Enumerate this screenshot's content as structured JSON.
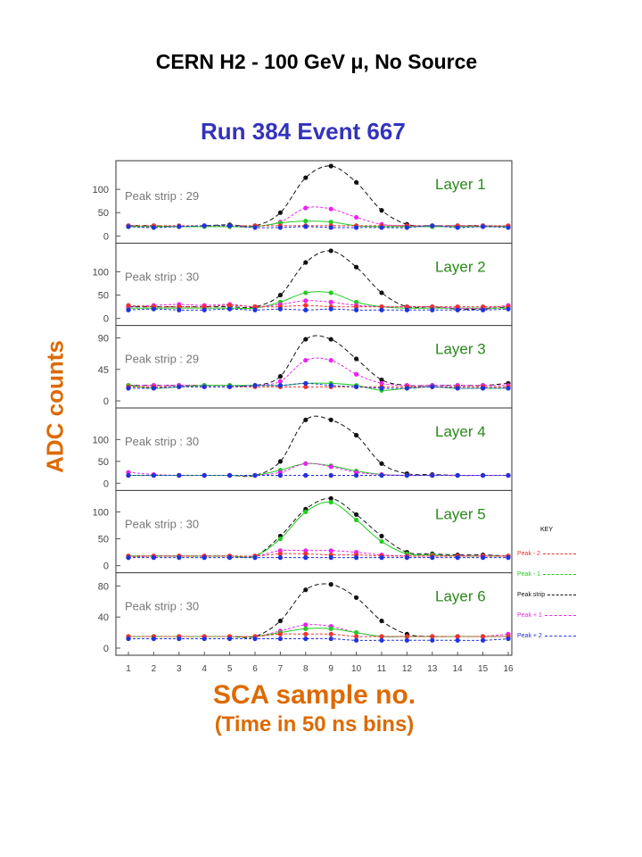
{
  "page": {
    "title": "CERN H2 - 100 GeV μ, No Source",
    "run_title": "Run 384   Event 667",
    "ylabel": "ADC counts",
    "xlabel_line1": "SCA sample no.",
    "xlabel_line2": "(Time in 50 ns bins)"
  },
  "key": {
    "title": "KEY",
    "items": [
      {
        "label": "Peak - 2",
        "color": "#ee3333"
      },
      {
        "label": "Peak - 1",
        "color": "#22cc22"
      },
      {
        "label": "Peak strip",
        "color": "#111111"
      },
      {
        "label": "Peak + 1",
        "color": "#ee22ee"
      },
      {
        "label": "Peak + 2",
        "color": "#2233dd"
      }
    ]
  },
  "colors": {
    "peak_strip": "#111111",
    "peak_minus_1": "#22cc22",
    "peak_minus_2": "#ee3333",
    "peak_plus_1": "#ee22ee",
    "peak_plus_2": "#2233dd",
    "layer_label": "#2a8a1a",
    "title_blue": "#3333bb",
    "axis_label_orange": "#dd6a00"
  },
  "chart_data": {
    "type": "line",
    "x": [
      1,
      2,
      3,
      4,
      5,
      6,
      7,
      8,
      9,
      10,
      11,
      12,
      13,
      14,
      15,
      16
    ],
    "xlabel": "SCA sample no. (Time in 50 ns bins)",
    "ylabel": "ADC counts",
    "panels": [
      {
        "label": "Layer 1",
        "peak_strip_text": "Peak strip : 29",
        "yticks": [
          0,
          50,
          100
        ],
        "ylim": [
          0,
          150
        ],
        "series": [
          {
            "name": "Peak strip",
            "color": "#111111",
            "values": [
              22,
              22,
              20,
              22,
              24,
              22,
              50,
              125,
              150,
              115,
              55,
              25,
              22,
              22,
              22,
              20
            ]
          },
          {
            "name": "Peak + 1",
            "color": "#ee22ee",
            "values": [
              20,
              20,
              20,
              22,
              20,
              20,
              30,
              60,
              58,
              40,
              25,
              22,
              20,
              22,
              20,
              22
            ]
          },
          {
            "name": "Peak - 1",
            "color": "#22cc22",
            "values": [
              20,
              20,
              20,
              20,
              20,
              20,
              28,
              32,
              30,
              22,
              20,
              20,
              20,
              20,
              20,
              20
            ]
          },
          {
            "name": "Peak - 2",
            "color": "#ee3333",
            "values": [
              22,
              22,
              22,
              22,
              22,
              22,
              22,
              22,
              22,
              22,
              22,
              22,
              22,
              22,
              22,
              22
            ]
          },
          {
            "name": "Peak + 2",
            "color": "#2233dd",
            "values": [
              20,
              18,
              20,
              22,
              22,
              18,
              18,
              20,
              18,
              18,
              18,
              18,
              22,
              18,
              20,
              18
            ]
          }
        ]
      },
      {
        "label": "Layer 2",
        "peak_strip_text": "Peak strip : 30",
        "yticks": [
          0,
          50,
          100
        ],
        "ylim": [
          0,
          150
        ],
        "series": [
          {
            "name": "Peak strip",
            "color": "#111111",
            "values": [
              25,
              25,
              25,
              25,
              25,
              25,
              50,
              120,
              145,
              110,
              55,
              25,
              25,
              20,
              20,
              25
            ]
          },
          {
            "name": "Peak - 1",
            "color": "#22cc22",
            "values": [
              22,
              22,
              22,
              22,
              22,
              22,
              35,
              55,
              55,
              35,
              25,
              22,
              22,
              22,
              22,
              22
            ]
          },
          {
            "name": "Peak + 1",
            "color": "#ee22ee",
            "values": [
              25,
              28,
              30,
              28,
              30,
              25,
              30,
              38,
              35,
              28,
              25,
              25,
              25,
              22,
              22,
              28
            ]
          },
          {
            "name": "Peak - 2",
            "color": "#ee3333",
            "values": [
              28,
              25,
              25,
              25,
              28,
              25,
              25,
              28,
              25,
              25,
              25,
              25,
              25,
              25,
              25,
              25
            ]
          },
          {
            "name": "Peak + 2",
            "color": "#2233dd",
            "values": [
              18,
              20,
              18,
              18,
              20,
              18,
              20,
              18,
              20,
              18,
              18,
              18,
              18,
              18,
              18,
              20
            ]
          }
        ]
      },
      {
        "label": "Layer 3",
        "peak_strip_text": "Peak strip : 29",
        "yticks": [
          0,
          45,
          90
        ],
        "ylim": [
          0,
          100
        ],
        "series": [
          {
            "name": "Peak strip",
            "color": "#111111",
            "values": [
              22,
              22,
              22,
              22,
              22,
              22,
              35,
              88,
              88,
              60,
              30,
              22,
              22,
              22,
              22,
              25
            ]
          },
          {
            "name": "Peak + 1",
            "color": "#ee22ee",
            "values": [
              22,
              22,
              22,
              22,
              22,
              22,
              28,
              58,
              58,
              38,
              25,
              22,
              22,
              22,
              22,
              22
            ]
          },
          {
            "name": "Peak - 1",
            "color": "#22cc22",
            "values": [
              22,
              18,
              20,
              22,
              22,
              22,
              22,
              25,
              25,
              22,
              15,
              18,
              20,
              18,
              18,
              18
            ]
          },
          {
            "name": "Peak - 2",
            "color": "#ee3333",
            "values": [
              20,
              20,
              20,
              20,
              20,
              20,
              20,
              20,
              20,
              20,
              20,
              20,
              20,
              20,
              20,
              20
            ]
          },
          {
            "name": "Peak + 2",
            "color": "#2233dd",
            "values": [
              18,
              18,
              20,
              20,
              20,
              22,
              22,
              25,
              22,
              20,
              18,
              18,
              20,
              18,
              18,
              18
            ]
          }
        ]
      },
      {
        "label": "Layer 4",
        "peak_strip_text": "Peak strip : 30",
        "yticks": [
          0,
          50,
          100
        ],
        "ylim": [
          0,
          160
        ],
        "series": [
          {
            "name": "Peak strip",
            "color": "#111111",
            "values": [
              18,
              18,
              18,
              18,
              18,
              18,
              50,
              145,
              145,
              110,
              45,
              22,
              20,
              18,
              18,
              18
            ]
          },
          {
            "name": "Peak - 1",
            "color": "#22cc22",
            "values": [
              18,
              18,
              18,
              18,
              18,
              18,
              30,
              45,
              40,
              28,
              20,
              18,
              18,
              18,
              18,
              18
            ]
          },
          {
            "name": "Peak + 1",
            "color": "#ee22ee",
            "values": [
              25,
              20,
              18,
              18,
              18,
              18,
              25,
              45,
              38,
              25,
              20,
              18,
              18,
              18,
              18,
              18
            ]
          },
          {
            "name": "Peak - 2",
            "color": "#ee3333",
            "values": [
              18,
              18,
              18,
              18,
              18,
              18,
              18,
              18,
              18,
              18,
              18,
              18,
              18,
              18,
              18,
              18
            ]
          },
          {
            "name": "Peak + 2",
            "color": "#2233dd",
            "values": [
              18,
              18,
              18,
              18,
              18,
              18,
              18,
              18,
              18,
              18,
              18,
              18,
              18,
              18,
              18,
              18
            ]
          }
        ]
      },
      {
        "label": "Layer 5",
        "peak_strip_text": "Peak strip : 30",
        "yticks": [
          0,
          50,
          100
        ],
        "ylim": [
          0,
          130
        ],
        "series": [
          {
            "name": "Peak strip",
            "color": "#111111",
            "values": [
              18,
              18,
              18,
              18,
              18,
              18,
              55,
              105,
              125,
              95,
              55,
              25,
              22,
              20,
              20,
              18
            ]
          },
          {
            "name": "Peak - 1",
            "color": "#22cc22",
            "values": [
              18,
              18,
              18,
              18,
              18,
              18,
              50,
              100,
              118,
              85,
              45,
              22,
              20,
              18,
              18,
              18
            ]
          },
          {
            "name": "Peak + 1",
            "color": "#ee22ee",
            "values": [
              15,
              18,
              18,
              18,
              18,
              18,
              28,
              28,
              28,
              25,
              20,
              18,
              18,
              18,
              18,
              18
            ]
          },
          {
            "name": "Peak - 2",
            "color": "#ee3333",
            "values": [
              18,
              18,
              18,
              18,
              18,
              18,
              22,
              22,
              20,
              20,
              18,
              18,
              18,
              18,
              18,
              18
            ]
          },
          {
            "name": "Peak + 2",
            "color": "#2233dd",
            "values": [
              15,
              15,
              15,
              15,
              15,
              15,
              15,
              15,
              15,
              15,
              15,
              15,
              15,
              15,
              15,
              15
            ]
          }
        ]
      },
      {
        "label": "Layer 6",
        "peak_strip_text": "Peak strip : 30",
        "yticks": [
          0,
          40,
          80
        ],
        "ylim": [
          0,
          90
        ],
        "series": [
          {
            "name": "Peak strip",
            "color": "#111111",
            "values": [
              15,
              15,
              15,
              15,
              15,
              15,
              35,
              75,
              82,
              65,
              35,
              18,
              15,
              15,
              15,
              15
            ]
          },
          {
            "name": "Peak + 1",
            "color": "#ee22ee",
            "values": [
              15,
              15,
              15,
              15,
              15,
              15,
              22,
              30,
              28,
              20,
              15,
              15,
              15,
              15,
              15,
              18
            ]
          },
          {
            "name": "Peak - 1",
            "color": "#22cc22",
            "values": [
              15,
              15,
              15,
              15,
              15,
              15,
              20,
              25,
              25,
              20,
              15,
              15,
              15,
              15,
              15,
              15
            ]
          },
          {
            "name": "Peak - 2",
            "color": "#ee3333",
            "values": [
              15,
              15,
              15,
              15,
              15,
              15,
              18,
              18,
              18,
              15,
              15,
              15,
              15,
              15,
              15,
              15
            ]
          },
          {
            "name": "Peak + 2",
            "color": "#2233dd",
            "values": [
              12,
              12,
              12,
              12,
              12,
              12,
              12,
              12,
              12,
              10,
              10,
              10,
              10,
              10,
              10,
              12
            ]
          }
        ]
      }
    ]
  }
}
